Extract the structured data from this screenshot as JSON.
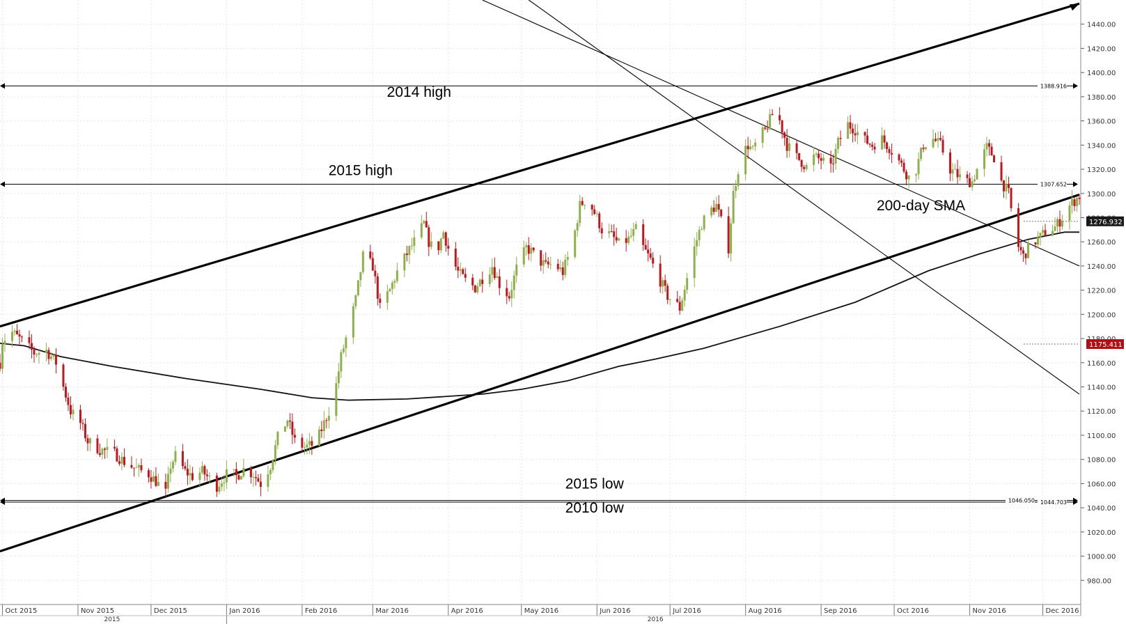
{
  "chart_data": {
    "type": "candlestick",
    "y_axis": {
      "side": "right",
      "range": [
        960,
        1460
      ],
      "ticks": [
        "980.00",
        "1000.00",
        "1020.00",
        "1040.00",
        "1060.00",
        "1080.00",
        "1100.00",
        "1120.00",
        "1140.00",
        "1160.00",
        "1180.00",
        "1200.00",
        "1220.00",
        "1240.00",
        "1260.00",
        "1280.00",
        "1300.00",
        "1320.00",
        "1340.00",
        "1360.00",
        "1380.00",
        "1400.00",
        "1420.00",
        "1440.00"
      ]
    },
    "x_axis": {
      "range": [
        "2015-09-30",
        "2016-12-16"
      ],
      "months": [
        {
          "label": "Oct 2015",
          "date": "2015-10-01"
        },
        {
          "label": "Nov 2015",
          "date": "2015-11-01"
        },
        {
          "label": "Dec 2015",
          "date": "2015-12-01"
        },
        {
          "label": "Jan 2016",
          "date": "2016-01-01"
        },
        {
          "label": "Feb 2016",
          "date": "2016-02-01"
        },
        {
          "label": "Mar 2016",
          "date": "2016-03-01"
        },
        {
          "label": "Apr 2016",
          "date": "2016-04-01"
        },
        {
          "label": "May 2016",
          "date": "2016-05-01"
        },
        {
          "label": "Jun 2016",
          "date": "2016-06-01"
        },
        {
          "label": "Jul 2016",
          "date": "2016-07-01"
        },
        {
          "label": "Aug 2016",
          "date": "2016-08-01"
        },
        {
          "label": "Sep 2016",
          "date": "2016-09-01"
        },
        {
          "label": "Oct 2016",
          "date": "2016-10-01"
        },
        {
          "label": "Nov 2016",
          "date": "2016-11-01"
        },
        {
          "label": "Dec 2016",
          "date": "2016-12-01"
        }
      ],
      "years": [
        {
          "label": "2015",
          "date": "2015-11-15"
        },
        {
          "label": "2016",
          "date": "2016-06-25"
        }
      ]
    },
    "up_color": "#8cb04a",
    "down_color": "#c0161c",
    "price_path": [
      [
        "2015-09-30",
        1160
      ],
      [
        "2015-10-01",
        1178
      ],
      [
        "2015-10-05",
        1185
      ],
      [
        "2015-10-09",
        1178
      ],
      [
        "2015-10-14",
        1168
      ],
      [
        "2015-10-19",
        1170
      ],
      [
        "2015-10-23",
        1160
      ],
      [
        "2015-10-26",
        1140
      ],
      [
        "2015-10-29",
        1120
      ],
      [
        "2015-11-02",
        1110
      ],
      [
        "2015-11-05",
        1095
      ],
      [
        "2015-11-10",
        1088
      ],
      [
        "2015-11-16",
        1085
      ],
      [
        "2015-11-20",
        1078
      ],
      [
        "2015-11-25",
        1072
      ],
      [
        "2015-11-30",
        1068
      ],
      [
        "2015-12-03",
        1062
      ],
      [
        "2015-12-07",
        1052
      ],
      [
        "2015-12-09",
        1075
      ],
      [
        "2015-12-11",
        1083
      ],
      [
        "2015-12-15",
        1070
      ],
      [
        "2015-12-18",
        1066
      ],
      [
        "2015-12-22",
        1070
      ],
      [
        "2015-12-28",
        1058
      ],
      [
        "2016-01-02",
        1070
      ],
      [
        "2016-01-05",
        1066
      ],
      [
        "2016-01-08",
        1072
      ],
      [
        "2016-01-12",
        1068
      ],
      [
        "2016-01-15",
        1060
      ],
      [
        "2016-01-19",
        1075
      ],
      [
        "2016-01-22",
        1098
      ],
      [
        "2016-01-26",
        1113
      ],
      [
        "2016-01-29",
        1095
      ],
      [
        "2016-02-02",
        1090
      ],
      [
        "2016-02-05",
        1092
      ],
      [
        "2016-02-08",
        1100
      ],
      [
        "2016-02-11",
        1115
      ],
      [
        "2016-02-14",
        1130
      ],
      [
        "2016-02-17",
        1165
      ],
      [
        "2016-02-21",
        1195
      ],
      [
        "2016-02-23",
        1212
      ],
      [
        "2016-02-26",
        1248
      ],
      [
        "2016-03-01",
        1240
      ],
      [
        "2016-03-04",
        1205
      ],
      [
        "2016-03-08",
        1220
      ],
      [
        "2016-03-11",
        1235
      ],
      [
        "2016-03-15",
        1250
      ],
      [
        "2016-03-18",
        1260
      ],
      [
        "2016-03-22",
        1275
      ],
      [
        "2016-03-24",
        1260
      ],
      [
        "2016-03-27",
        1250
      ],
      [
        "2016-03-30",
        1268
      ],
      [
        "2016-04-02",
        1248
      ],
      [
        "2016-04-05",
        1235
      ],
      [
        "2016-04-08",
        1228
      ],
      [
        "2016-04-12",
        1222
      ],
      [
        "2016-04-15",
        1230
      ],
      [
        "2016-04-19",
        1240
      ],
      [
        "2016-04-22",
        1225
      ],
      [
        "2016-04-26",
        1215
      ],
      [
        "2016-04-29",
        1238
      ],
      [
        "2016-05-03",
        1255
      ],
      [
        "2016-05-05",
        1252
      ],
      [
        "2016-05-08",
        1245
      ],
      [
        "2016-05-11",
        1240
      ],
      [
        "2016-05-14",
        1242
      ],
      [
        "2016-05-18",
        1235
      ],
      [
        "2016-05-22",
        1258
      ],
      [
        "2016-05-25",
        1290
      ],
      [
        "2016-05-28",
        1296
      ],
      [
        "2016-06-01",
        1280
      ],
      [
        "2016-06-03",
        1270
      ],
      [
        "2016-06-07",
        1265
      ],
      [
        "2016-06-10",
        1258
      ],
      [
        "2016-06-14",
        1262
      ],
      [
        "2016-06-17",
        1270
      ],
      [
        "2016-06-20",
        1255
      ],
      [
        "2016-06-23",
        1245
      ],
      [
        "2016-06-26",
        1232
      ],
      [
        "2016-06-30",
        1215
      ],
      [
        "2016-07-03",
        1210
      ],
      [
        "2016-07-05",
        1205
      ],
      [
        "2016-07-08",
        1230
      ],
      [
        "2016-07-11",
        1255
      ],
      [
        "2016-07-14",
        1275
      ],
      [
        "2016-07-17",
        1285
      ],
      [
        "2016-07-20",
        1290
      ],
      [
        "2016-07-23",
        1270
      ],
      [
        "2016-07-25",
        1255
      ],
      [
        "2016-07-27",
        1300
      ],
      [
        "2016-07-30",
        1330
      ],
      [
        "2016-08-02",
        1340
      ],
      [
        "2016-08-04",
        1335
      ],
      [
        "2016-08-06",
        1345
      ],
      [
        "2016-08-09",
        1352
      ],
      [
        "2016-08-12",
        1365
      ],
      [
        "2016-08-15",
        1360
      ],
      [
        "2016-08-18",
        1340
      ],
      [
        "2016-08-22",
        1330
      ],
      [
        "2016-08-26",
        1322
      ],
      [
        "2016-08-29",
        1330
      ],
      [
        "2016-09-01",
        1328
      ],
      [
        "2016-09-05",
        1320
      ],
      [
        "2016-09-08",
        1342
      ],
      [
        "2016-09-12",
        1357
      ],
      [
        "2016-09-15",
        1353
      ],
      [
        "2016-09-18",
        1345
      ],
      [
        "2016-09-22",
        1340
      ],
      [
        "2016-09-26",
        1345
      ],
      [
        "2016-09-29",
        1338
      ],
      [
        "2016-10-02",
        1330
      ],
      [
        "2016-10-05",
        1320
      ],
      [
        "2016-10-08",
        1310
      ],
      [
        "2016-10-10",
        1320
      ],
      [
        "2016-10-13",
        1340
      ],
      [
        "2016-10-17",
        1345
      ],
      [
        "2016-10-20",
        1340
      ],
      [
        "2016-10-24",
        1320
      ],
      [
        "2016-10-27",
        1315
      ],
      [
        "2016-10-30",
        1310
      ],
      [
        "2016-11-02",
        1310
      ],
      [
        "2016-11-05",
        1325
      ],
      [
        "2016-11-08",
        1338
      ],
      [
        "2016-11-11",
        1330
      ],
      [
        "2016-11-14",
        1310
      ],
      [
        "2016-11-17",
        1300
      ],
      [
        "2016-11-20",
        1260
      ],
      [
        "2016-11-23",
        1248
      ],
      [
        "2016-11-26",
        1258
      ],
      [
        "2016-11-29",
        1262
      ],
      [
        "2016-12-02",
        1268
      ],
      [
        "2016-12-06",
        1272
      ],
      [
        "2016-12-09",
        1280
      ],
      [
        "2016-12-12",
        1290
      ],
      [
        "2016-12-16",
        1298
      ]
    ],
    "sma": {
      "name": "200-day SMA",
      "points": [
        [
          "2015-09-30",
          1176
        ],
        [
          "2015-10-10",
          1174
        ],
        [
          "2015-10-25",
          1165
        ],
        [
          "2015-11-15",
          1157
        ],
        [
          "2015-12-15",
          1147
        ],
        [
          "2016-01-15",
          1138
        ],
        [
          "2016-02-05",
          1131
        ],
        [
          "2016-02-20",
          1129
        ],
        [
          "2016-03-15",
          1130
        ],
        [
          "2016-04-15",
          1134
        ],
        [
          "2016-05-01",
          1138
        ],
        [
          "2016-05-20",
          1145
        ],
        [
          "2016-06-10",
          1157
        ],
        [
          "2016-06-25",
          1163
        ],
        [
          "2016-07-15",
          1172
        ],
        [
          "2016-08-15",
          1190
        ],
        [
          "2016-09-15",
          1210
        ],
        [
          "2016-10-15",
          1236
        ],
        [
          "2016-11-05",
          1250
        ],
        [
          "2016-11-25",
          1262
        ],
        [
          "2016-12-10",
          1268
        ],
        [
          "2016-12-16",
          1268
        ]
      ]
    },
    "lines": [
      {
        "kind": "trendline",
        "from": [
          "2015-09-30",
          1190
        ],
        "to": [
          "2016-12-16",
          1457
        ]
      },
      {
        "kind": "trendline",
        "from": [
          "2015-09-30",
          1004
        ],
        "to": [
          "2016-12-16",
          1299
        ]
      },
      {
        "kind": "trendline",
        "from": [
          "2016-04-15",
          1460
        ],
        "to": [
          "2016-12-16",
          1240
        ]
      },
      {
        "kind": "trendline",
        "from": [
          "2016-05-04",
          1460
        ],
        "to": [
          "2016-12-16",
          1134
        ]
      }
    ],
    "levels": [
      {
        "name": "2014 high",
        "value": 1388.916,
        "label": "1388.916"
      },
      {
        "name": "2015 high",
        "value": 1307.652,
        "label": "1307.652"
      },
      {
        "name": "2015 low",
        "value": 1046.05,
        "label": "1046.050"
      },
      {
        "name": "2010 low",
        "value": 1044.703,
        "label": "1044.703"
      }
    ],
    "annotations": [
      {
        "text": "2014 high",
        "date": "2016-03-20",
        "value": 1380
      },
      {
        "text": "2015 high",
        "date": "2016-02-25",
        "value": 1315
      },
      {
        "text": "200-day SMA",
        "date": "2016-10-12",
        "value": 1286
      },
      {
        "text": "2015 low",
        "date": "2016-05-31",
        "value": 1056
      },
      {
        "text": "2010 low",
        "date": "2016-05-31",
        "value": 1036
      }
    ],
    "price_tags": [
      {
        "value": 1276.932,
        "label": "1276.932",
        "color": "#1a1a1a"
      },
      {
        "value": 1175.411,
        "label": "1175.411",
        "color": "#b01015"
      }
    ]
  }
}
